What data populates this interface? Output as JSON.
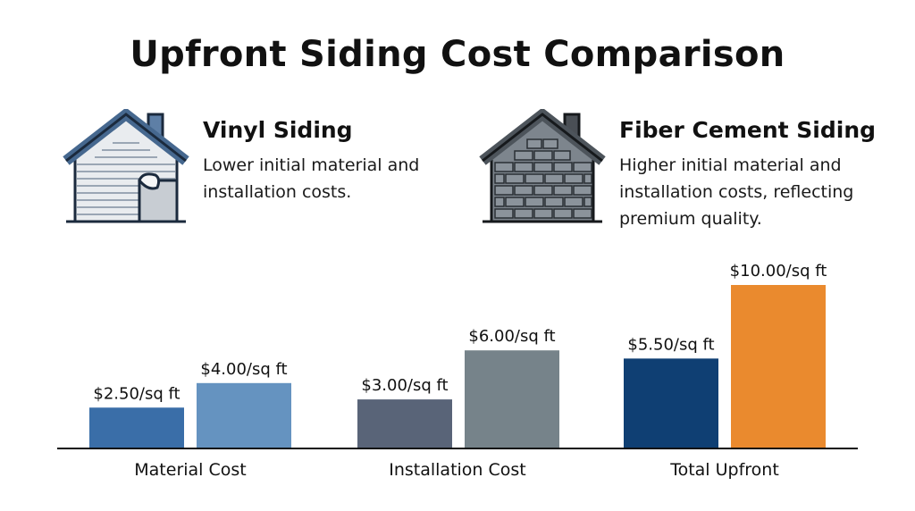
{
  "title": "Upfront Siding Cost Comparison",
  "cards": {
    "vinyl": {
      "icon": "vinyl-house-icon",
      "title": "Vinyl Siding",
      "description": "Lower initial material and installation costs."
    },
    "fiber": {
      "icon": "brick-house-icon",
      "title": "Fiber Cement Siding",
      "description": "Higher initial material and installation costs, reflecting premium quality."
    }
  },
  "chart_data": {
    "type": "bar",
    "title": "",
    "xlabel": "",
    "ylabel": "",
    "ylim": [
      0,
      12
    ],
    "grid": false,
    "legend": "none",
    "categories": [
      "Material Cost",
      "Installation Cost",
      "Total Upfront"
    ],
    "bars": [
      {
        "category": "Material Cost",
        "value": 2.5,
        "label": "$2.50/sq ft",
        "color": "#3a6ea8"
      },
      {
        "category": "Material Cost",
        "value": 4.0,
        "label": "$4.00/sq ft",
        "color": "#6593c0"
      },
      {
        "category": "Installation Cost",
        "value": 3.0,
        "label": "$3.00/sq ft",
        "color": "#596478"
      },
      {
        "category": "Installation Cost",
        "value": 6.0,
        "label": "$6.00/sq ft",
        "color": "#76838a"
      },
      {
        "category": "Total Upfront",
        "value": 5.5,
        "label": "$5.50/sq ft",
        "color": "#0f3f73"
      },
      {
        "category": "Total Upfront",
        "value": 10.0,
        "label": "$10.00/sq ft",
        "color": "#ea8a2e"
      }
    ]
  }
}
